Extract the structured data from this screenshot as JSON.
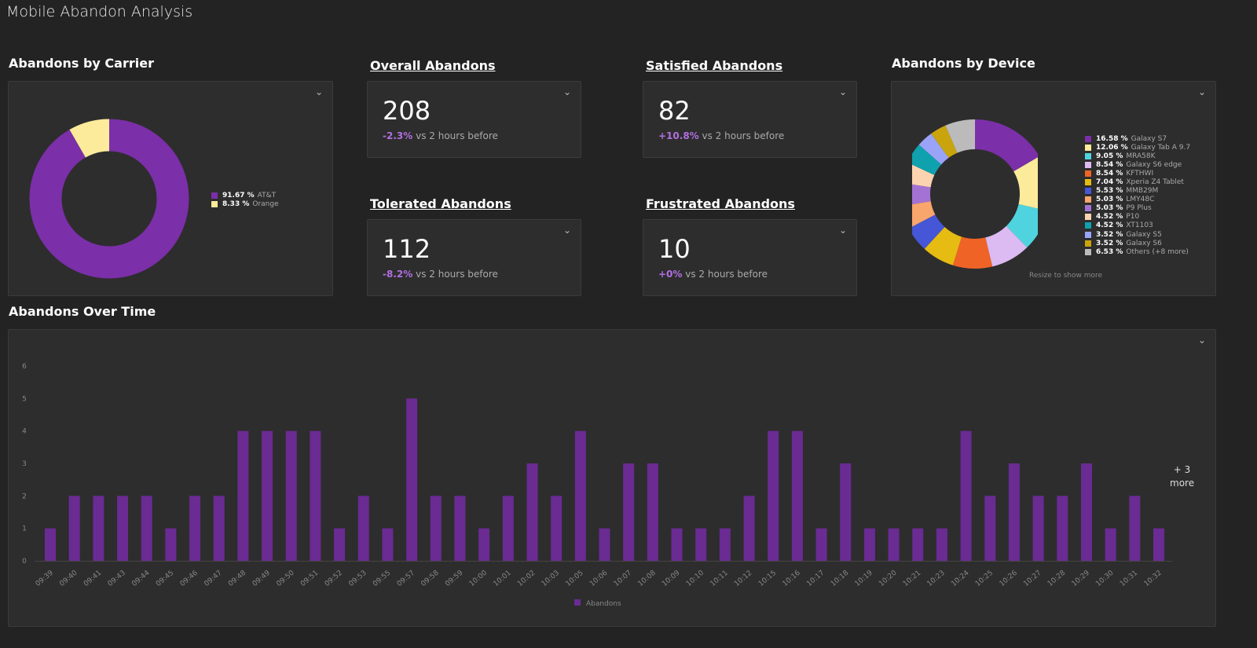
{
  "page": {
    "title": "Mobile Abandon Analysis"
  },
  "carrier": {
    "title": "Abandons by Carrier",
    "items": [
      {
        "pct": "91.67 %",
        "label": "AT&T",
        "value": 91.67,
        "color": "#7b2fa8"
      },
      {
        "pct": "8.33 %",
        "label": "Orange",
        "value": 8.33,
        "color": "#fbeb9a"
      }
    ]
  },
  "tiles": [
    {
      "title": "Overall Abandons",
      "value": "208",
      "delta": "-2.3%",
      "suffix": "vs 2 hours before"
    },
    {
      "title": "Satisfied Abandons",
      "value": "82",
      "delta": "+10.8%",
      "suffix": "vs 2 hours before"
    },
    {
      "title": "Tolerated Abandons",
      "value": "112",
      "delta": "-8.2%",
      "suffix": "vs 2 hours before"
    },
    {
      "title": "Frustrated Abandons",
      "value": "10",
      "delta": "+0%",
      "suffix": "vs 2 hours before"
    }
  ],
  "device": {
    "title": "Abandons by Device",
    "footer": "Resize to show more",
    "items": [
      {
        "pct": "16.58 %",
        "label": "Galaxy S7",
        "value": 16.58,
        "color": "#7b2fa8"
      },
      {
        "pct": "12.06 %",
        "label": "Galaxy Tab A 9.7",
        "value": 12.06,
        "color": "#fbeb9a"
      },
      {
        "pct": "9.05 %",
        "label": "MRA58K",
        "value": 9.05,
        "color": "#4fd4df"
      },
      {
        "pct": "8.54 %",
        "label": "Galaxy S6 edge",
        "value": 8.54,
        "color": "#dcbaf2"
      },
      {
        "pct": "8.54 %",
        "label": "KFTHWI",
        "value": 8.54,
        "color": "#ef6426"
      },
      {
        "pct": "7.04 %",
        "label": "Xperia Z4 Tablet",
        "value": 7.04,
        "color": "#e6bb12"
      },
      {
        "pct": "5.53 %",
        "label": "MMB29M",
        "value": 5.53,
        "color": "#4556d6"
      },
      {
        "pct": "5.03 %",
        "label": "LMY48C",
        "value": 5.03,
        "color": "#f9a66c"
      },
      {
        "pct": "5.03 %",
        "label": "P9 Plus",
        "value": 5.03,
        "color": "#a472d4"
      },
      {
        "pct": "4.52 %",
        "label": "P10",
        "value": 4.52,
        "color": "#fcd3b0"
      },
      {
        "pct": "4.52 %",
        "label": "XT1103",
        "value": 4.52,
        "color": "#0fa1ae"
      },
      {
        "pct": "3.52 %",
        "label": "Galaxy S5",
        "value": 3.52,
        "color": "#99a4f8"
      },
      {
        "pct": "3.52 %",
        "label": "Galaxy S6",
        "value": 3.52,
        "color": "#c9a40d"
      },
      {
        "pct": "6.53 %",
        "label": "Others (+8 more)",
        "value": 6.53,
        "color": "#bbbbbb"
      }
    ]
  },
  "timeline": {
    "title": "Abandons Over Time",
    "more": "+ 3\nmore",
    "more_line1": "+ 3",
    "more_line2": "more"
  },
  "chart_data": {
    "type": "bar",
    "ylim": [
      0,
      6
    ],
    "yticks": [
      "0",
      "1",
      "2",
      "3",
      "4",
      "5",
      "6"
    ],
    "legend": "Abandons",
    "legend_position": "bottom",
    "color": "#6a2b93",
    "categories": [
      "09:39",
      "09:40",
      "09:41",
      "09:43",
      "09:44",
      "09:45",
      "09:46",
      "09:47",
      "09:48",
      "09:49",
      "09:50",
      "09:51",
      "09:52",
      "09:53",
      "09:55",
      "09:57",
      "09:58",
      "09:59",
      "10:00",
      "10:01",
      "10:02",
      "10:03",
      "10:05",
      "10:06",
      "10:07",
      "10:08",
      "10:09",
      "10:10",
      "10:11",
      "10:12",
      "10:15",
      "10:16",
      "10:17",
      "10:18",
      "10:19",
      "10:20",
      "10:21",
      "10:23",
      "10:24",
      "10:25",
      "10:26",
      "10:27",
      "10:28",
      "10:29",
      "10:30",
      "10:31",
      "10:32"
    ],
    "values": [
      1,
      2,
      2,
      2,
      2,
      1,
      2,
      2,
      4,
      4,
      4,
      4,
      1,
      2,
      1,
      5,
      2,
      2,
      1,
      2,
      3,
      2,
      4,
      1,
      3,
      3,
      1,
      1,
      1,
      2,
      4,
      4,
      1,
      3,
      1,
      1,
      1,
      1,
      4,
      2,
      3,
      2,
      2,
      3,
      1,
      2,
      1
    ]
  }
}
